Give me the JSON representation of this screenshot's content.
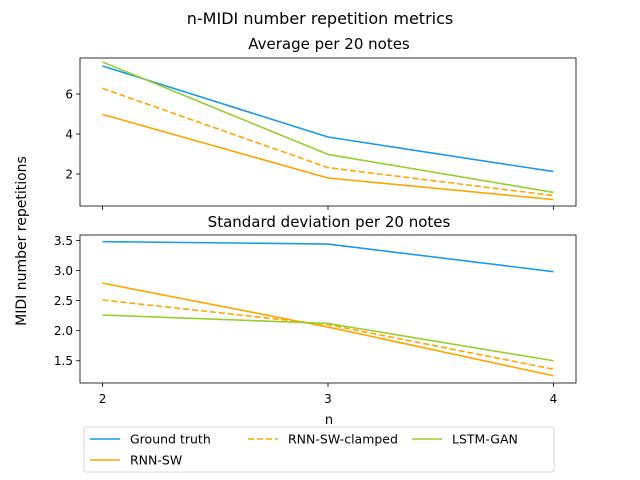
{
  "figure": {
    "suptitle": "n-MIDI number repetition metrics",
    "ylabel": "MIDI number repetitions",
    "xlabel": "n"
  },
  "series_styles": [
    {
      "name": "Ground truth",
      "color": "#1a9ae6",
      "dash": "solid"
    },
    {
      "name": "RNN-SW",
      "color": "#ffa500",
      "dash": "solid"
    },
    {
      "name": "RNN-SW-clamped",
      "color": "#ffa500",
      "dash": "dashed"
    },
    {
      "name": "LSTM-GAN",
      "color": "#9acd32",
      "dash": "solid"
    }
  ],
  "legend": {
    "placement": "below",
    "entries": [
      "Ground truth",
      "RNN-SW",
      "RNN-SW-clamped",
      "LSTM-GAN"
    ]
  },
  "chart_data": [
    {
      "type": "line",
      "title": "Average per 20 notes",
      "x": [
        2,
        3,
        4
      ],
      "xlabel": "",
      "ylabel": "",
      "yticks": [
        2,
        4,
        6
      ],
      "ylim": [
        0.4,
        7.8
      ],
      "xticks": [
        2,
        3,
        4
      ],
      "show_xticklabels": false,
      "grid": false,
      "series": [
        {
          "name": "Ground truth",
          "values": [
            7.4,
            3.85,
            2.12
          ]
        },
        {
          "name": "RNN-SW",
          "values": [
            4.98,
            1.8,
            0.72
          ]
        },
        {
          "name": "RNN-SW-clamped",
          "values": [
            6.28,
            2.32,
            0.92
          ]
        },
        {
          "name": "LSTM-GAN",
          "values": [
            7.6,
            2.98,
            1.08
          ]
        }
      ]
    },
    {
      "type": "line",
      "title": "Standard deviation per 20 notes",
      "x": [
        2,
        3,
        4
      ],
      "xlabel": "n",
      "ylabel": "",
      "yticks": [
        1.5,
        2.0,
        2.5,
        3.0,
        3.5
      ],
      "ytick_labels": [
        "1.5",
        "2.0",
        "2.5",
        "3.0",
        "3.5"
      ],
      "ylim": [
        1.13,
        3.59
      ],
      "xticks": [
        2,
        3,
        4
      ],
      "show_xticklabels": true,
      "grid": false,
      "series": [
        {
          "name": "Ground truth",
          "values": [
            3.48,
            3.44,
            2.98
          ]
        },
        {
          "name": "RNN-SW",
          "values": [
            2.79,
            2.06,
            1.25
          ]
        },
        {
          "name": "RNN-SW-clamped",
          "values": [
            2.51,
            2.1,
            1.36
          ]
        },
        {
          "name": "LSTM-GAN",
          "values": [
            2.26,
            2.12,
            1.5
          ]
        }
      ]
    }
  ]
}
